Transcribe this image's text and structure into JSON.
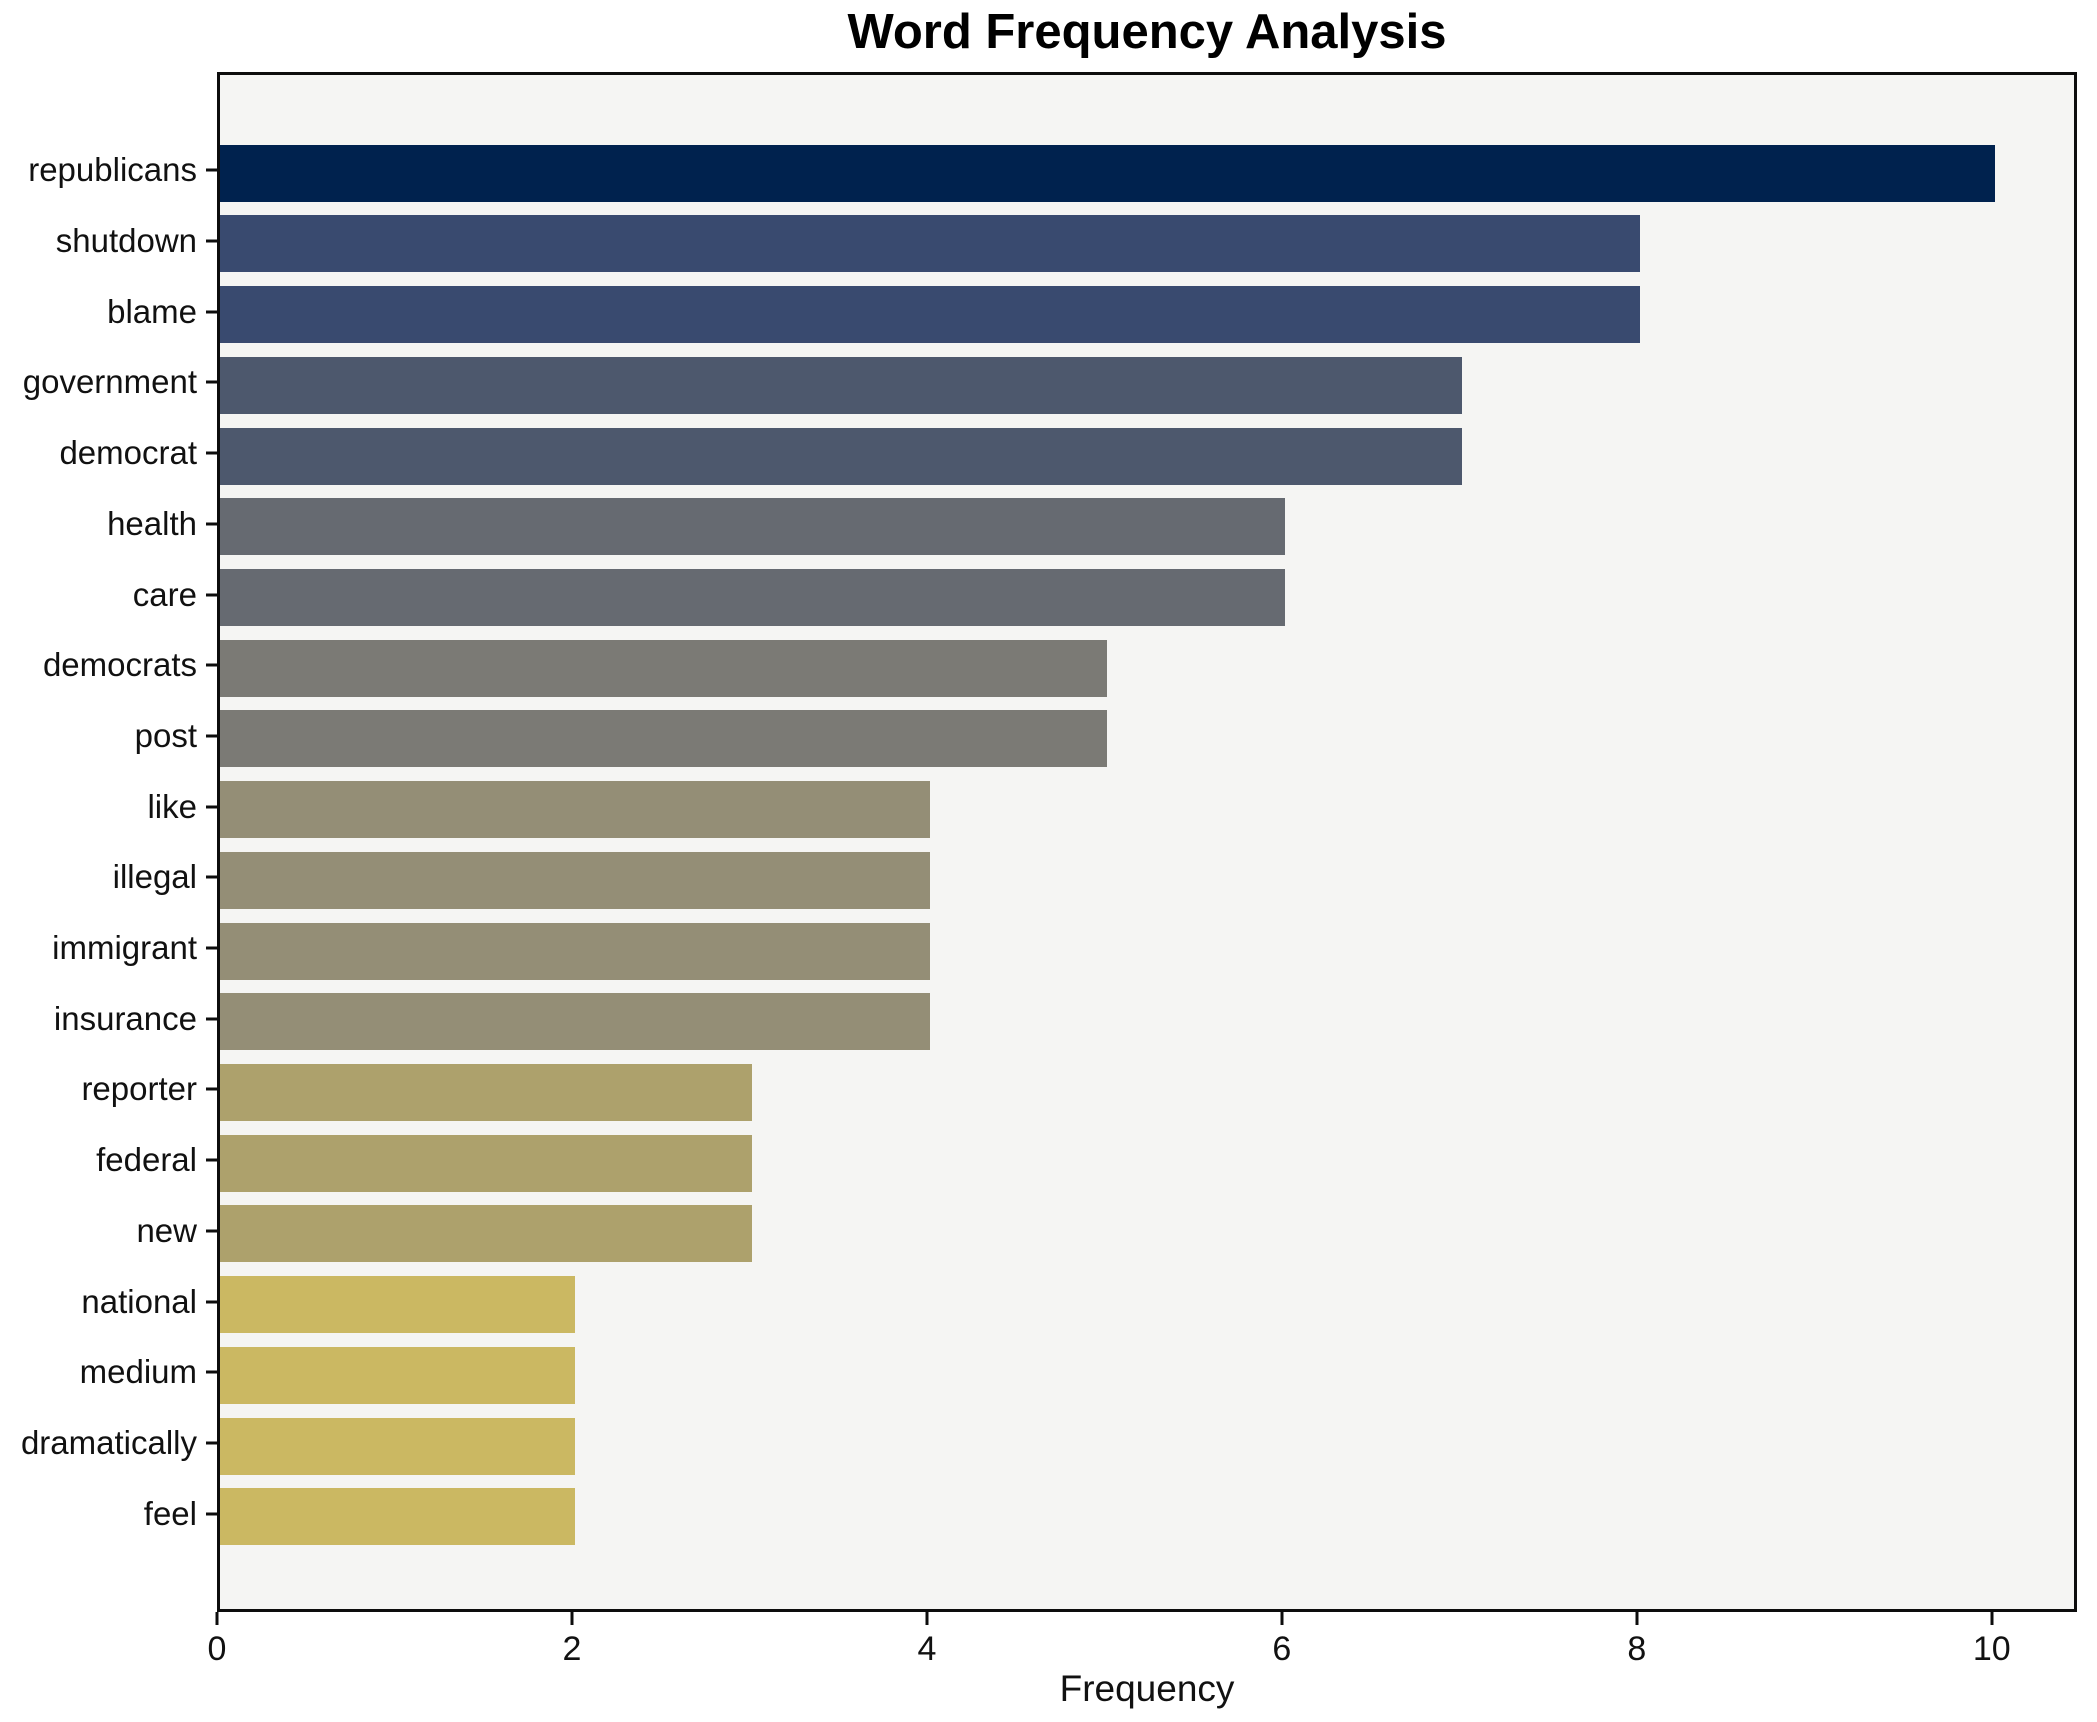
{
  "chart_data": {
    "type": "bar",
    "orientation": "horizontal",
    "title": "Word Frequency Analysis",
    "xlabel": "Frequency",
    "ylabel": "",
    "categories": [
      "republicans",
      "shutdown",
      "blame",
      "government",
      "democrat",
      "health",
      "care",
      "democrats",
      "post",
      "like",
      "illegal",
      "immigrant",
      "insurance",
      "reporter",
      "federal",
      "new",
      "national",
      "medium",
      "dramatically",
      "feel"
    ],
    "values": [
      10,
      8,
      8,
      7,
      7,
      6,
      6,
      5,
      5,
      4,
      4,
      4,
      4,
      3,
      3,
      3,
      2,
      2,
      2,
      2
    ],
    "bar_colors": [
      "#00224e",
      "#394a6f",
      "#394a6f",
      "#4d586d",
      "#4d586d",
      "#666a71",
      "#666a71",
      "#7b7a75",
      "#7b7a75",
      "#948e76",
      "#948e76",
      "#948e76",
      "#948e76",
      "#ada16c",
      "#ada16c",
      "#ada16c",
      "#cbb862",
      "#cbb862",
      "#cbb862",
      "#cbb862"
    ],
    "x_ticks": [
      0,
      2,
      4,
      6,
      8,
      10
    ],
    "xlim": [
      0,
      10.48
    ],
    "grid": false,
    "legend": null,
    "colormap": "cividis",
    "plot_background": "#f5f5f3",
    "title_color": "#000000",
    "text_color": "#111111"
  }
}
